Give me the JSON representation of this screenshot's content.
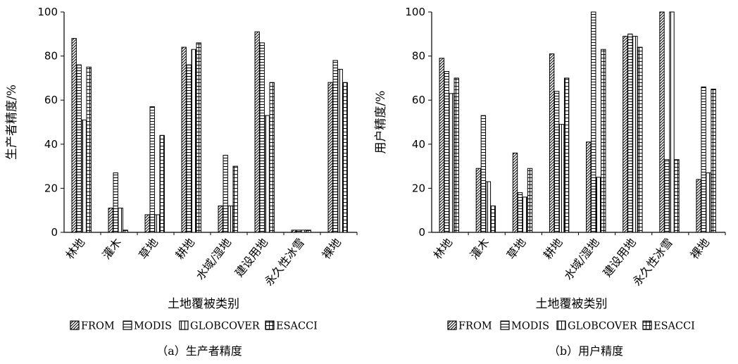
{
  "chart_data": [
    {
      "type": "bar",
      "panel": "a",
      "caption": "（a）生产者精度",
      "xlabel": "土地覆被类别",
      "ylabel": "生产者精度/%",
      "ylim": [
        0,
        100
      ],
      "yticks": [
        "0",
        "20",
        "40",
        "60",
        "80",
        "100"
      ],
      "categories": [
        "林地",
        "灌木",
        "草地",
        "耕地",
        "水域/湿地",
        "建设用地",
        "永久性冰雪",
        "裸地"
      ],
      "series": [
        {
          "name": "FROM",
          "values": [
            88,
            11,
            8,
            84,
            12,
            91,
            1,
            68
          ]
        },
        {
          "name": "MODIS",
          "values": [
            76,
            27,
            57,
            76,
            35,
            86,
            1,
            78
          ]
        },
        {
          "name": "GLOBCOVER",
          "values": [
            51,
            11,
            8,
            83,
            12,
            53,
            1,
            74
          ]
        },
        {
          "name": "ESACCI",
          "values": [
            75,
            1,
            44,
            86,
            30,
            68,
            1,
            68
          ]
        }
      ],
      "legend": "bottom",
      "grid": false
    },
    {
      "type": "bar",
      "panel": "b",
      "caption": "（b）用户精度",
      "xlabel": "土地覆被类别",
      "ylabel": "用户精度/%",
      "ylim": [
        0,
        100
      ],
      "yticks": [
        "0",
        "20",
        "40",
        "60",
        "80",
        "100"
      ],
      "categories": [
        "林地",
        "灌木",
        "草地",
        "耕地",
        "水域/湿地",
        "建设用地",
        "永久性冰雪",
        "裸地"
      ],
      "series": [
        {
          "name": "FROM",
          "values": [
            79,
            29,
            36,
            81,
            41,
            89,
            100,
            24
          ]
        },
        {
          "name": "MODIS",
          "values": [
            73,
            53,
            18,
            64,
            100,
            90,
            33,
            66
          ]
        },
        {
          "name": "GLOBCOVER",
          "values": [
            63,
            23,
            16,
            49,
            25,
            89,
            100,
            27
          ]
        },
        {
          "name": "ESACCI",
          "values": [
            70,
            12,
            29,
            70,
            83,
            84,
            33,
            65
          ]
        }
      ],
      "legend": "bottom",
      "grid": false
    }
  ]
}
